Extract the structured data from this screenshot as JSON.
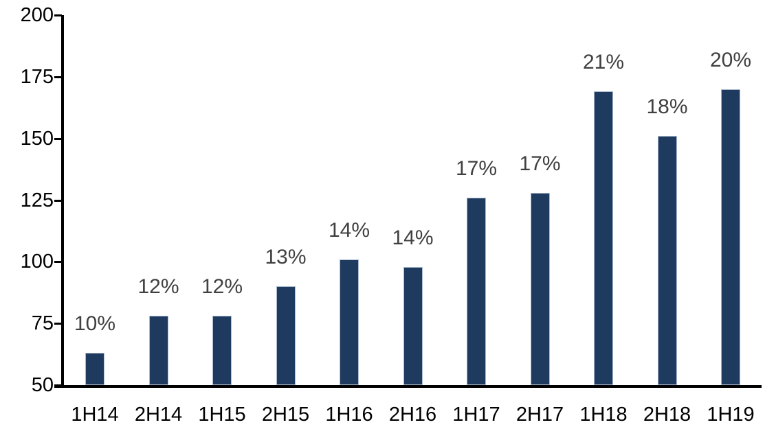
{
  "chart_data": {
    "type": "bar",
    "title": "",
    "xlabel": "",
    "ylabel": "",
    "categories": [
      "1H14",
      "2H14",
      "1H15",
      "2H15",
      "1H16",
      "2H16",
      "1H17",
      "2H17",
      "1H18",
      "2H18",
      "1H19"
    ],
    "values": [
      63,
      78,
      78,
      90,
      101,
      98,
      126,
      128,
      169,
      151,
      170
    ],
    "bar_labels": [
      "10%",
      "12%",
      "12%",
      "13%",
      "14%",
      "14%",
      "17%",
      "17%",
      "21%",
      "18%",
      "20%"
    ],
    "ylim": [
      50,
      200
    ],
    "y_ticks": [
      200,
      175,
      150,
      125,
      100,
      75,
      50
    ],
    "grid": false,
    "legend": false,
    "colors": {
      "bar_fill": "#1f3a5f",
      "bar_border": "#a9b9cd",
      "data_label": "#404040",
      "axis": "#000000",
      "background": "#ffffff"
    }
  }
}
